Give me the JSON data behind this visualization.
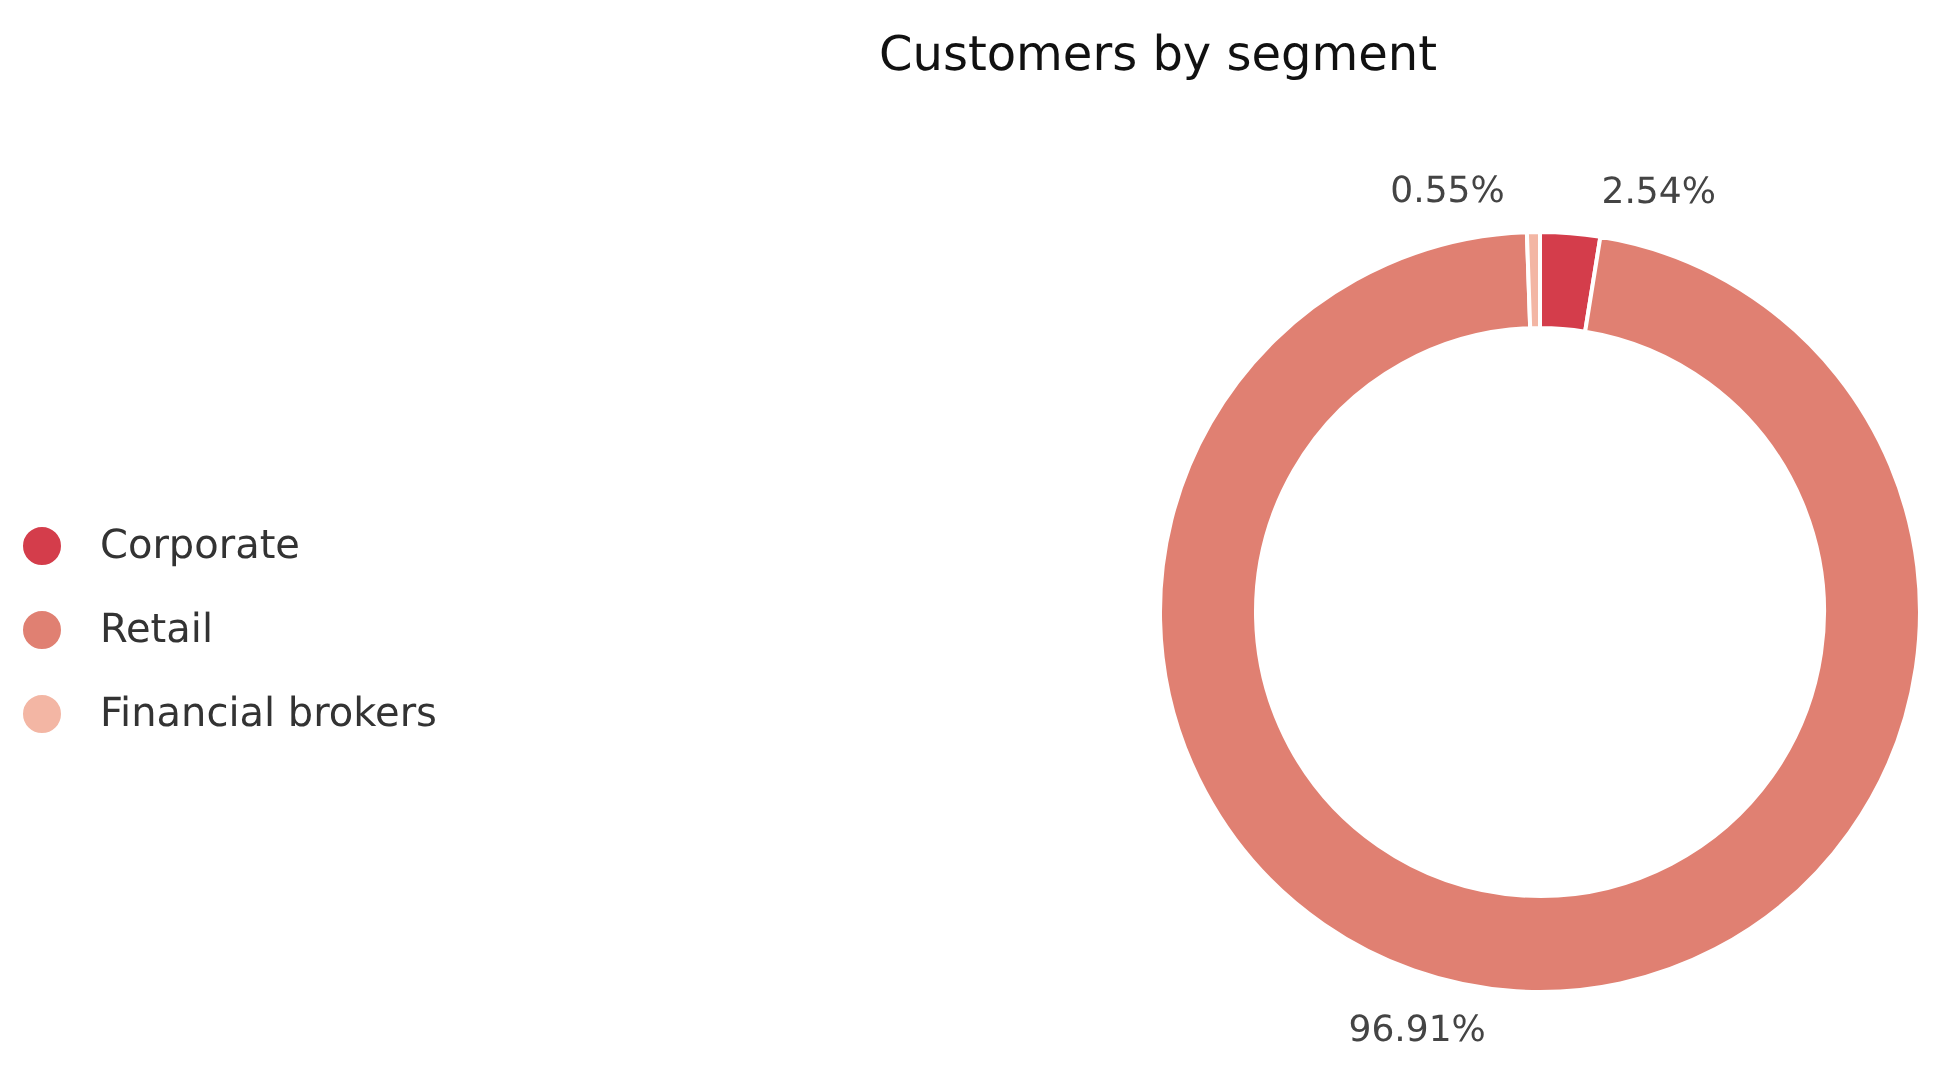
{
  "chart_data": {
    "type": "donut",
    "title": "Customers by segment",
    "categories": [
      "Corporate",
      "Retail",
      "Financial brokers"
    ],
    "values": [
      2.54,
      96.91,
      0.55
    ],
    "colors": [
      "#d43d4b",
      "#e08072",
      "#f3b6a4"
    ],
    "value_labels": [
      "2.54%",
      "96.91%",
      "0.55%"
    ],
    "legend": "left"
  }
}
